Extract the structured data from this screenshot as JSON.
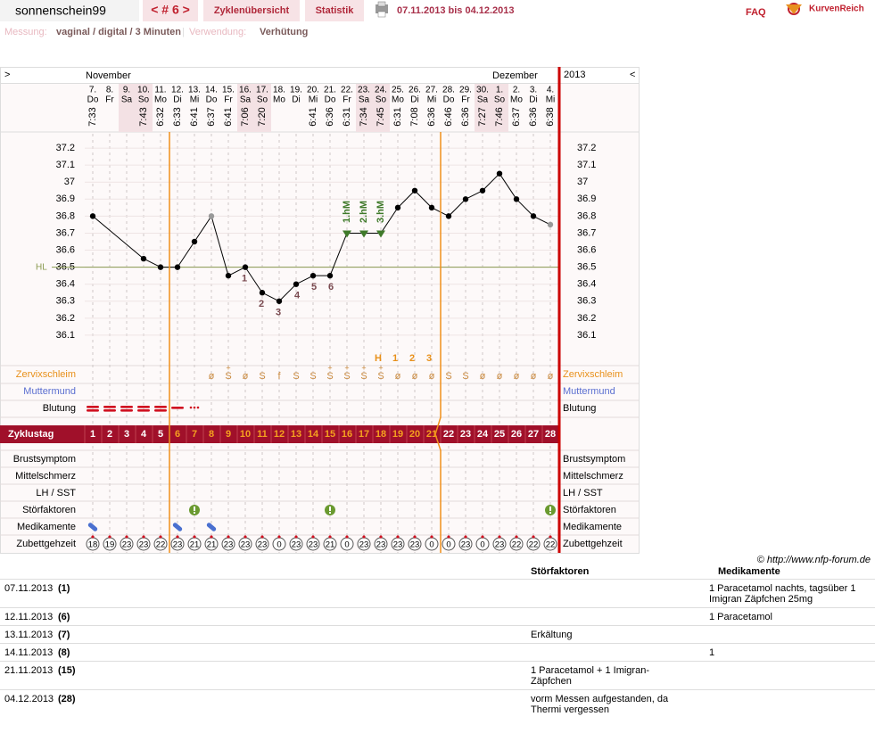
{
  "header": {
    "user": "sonnenschein99",
    "cycle_nav": "< # 6 >",
    "tabs": [
      "Zyklenübersicht",
      "Statistik"
    ],
    "date_range": "07.11.2013 bis 04.12.2013",
    "faq": "FAQ",
    "logo": "KurvenReich"
  },
  "settings_line": {
    "measurement_label": "Messung:",
    "measurement": "vaginal / digital / 3 Minuten",
    "separator": "|",
    "usage_label": "Verwendung:",
    "usage": "Verhütung"
  },
  "chart_data": {
    "type": "line",
    "nav_prev": ">",
    "nav_next": "<",
    "year": "2013",
    "months": [
      "November",
      "Dezember"
    ],
    "month_starts": [
      0,
      24
    ],
    "days": [
      "7.",
      "8.",
      "9.",
      "10.",
      "11.",
      "12.",
      "13.",
      "14.",
      "15.",
      "16.",
      "17.",
      "18.",
      "19.",
      "20.",
      "21.",
      "22.",
      "23.",
      "24.",
      "25.",
      "26.",
      "27.",
      "28.",
      "29.",
      "30.",
      "1.",
      "2.",
      "3.",
      "4."
    ],
    "weekdays": [
      "Do",
      "Fr",
      "Sa",
      "So",
      "Mo",
      "Di",
      "Mi",
      "Do",
      "Fr",
      "Sa",
      "So",
      "Mo",
      "Di",
      "Mi",
      "Do",
      "Fr",
      "Sa",
      "So",
      "Mo",
      "Di",
      "Mi",
      "Do",
      "Fr",
      "Sa",
      "So",
      "Mo",
      "Di",
      "Mi"
    ],
    "weekend": [
      false,
      false,
      true,
      true,
      false,
      false,
      false,
      false,
      false,
      true,
      true,
      false,
      false,
      false,
      false,
      false,
      true,
      true,
      false,
      false,
      false,
      false,
      false,
      true,
      true,
      false,
      false,
      false
    ],
    "times": [
      "7:33",
      null,
      null,
      "7:43",
      "6:32",
      "6:33",
      "6:41",
      "6:37",
      "6:41",
      "7:06",
      "7:20",
      null,
      null,
      "6:41",
      "6:36",
      "6:31",
      "7:34",
      "7:45",
      "6:31",
      "7:08",
      "6:36",
      "6:46",
      "6:36",
      "7:27",
      "7:46",
      "6:37",
      "6:36",
      "6:38"
    ],
    "values": [
      36.8,
      null,
      null,
      36.55,
      36.5,
      36.5,
      36.65,
      36.8,
      36.45,
      36.5,
      36.35,
      36.3,
      36.4,
      36.45,
      36.45,
      36.7,
      36.7,
      36.7,
      36.85,
      36.95,
      36.85,
      36.8,
      36.9,
      36.95,
      37.05,
      36.9,
      36.8,
      36.75
    ],
    "markers": [
      "dot",
      null,
      null,
      "dot",
      "dot",
      "dot",
      "dot",
      "excluded",
      "dot",
      "dot",
      "dot",
      "dot",
      "dot",
      "dot",
      "dot",
      "triangle",
      "triangle",
      "triangle",
      "dot",
      "dot",
      "dot",
      "dot",
      "dot",
      "dot",
      "dot",
      "dot",
      "dot",
      "excluded"
    ],
    "low_labels": [
      null,
      null,
      null,
      null,
      null,
      null,
      null,
      null,
      null,
      "1",
      "2",
      "3",
      "4",
      "5",
      "6",
      null,
      null,
      null,
      null,
      null,
      null,
      null,
      null,
      null,
      null,
      null,
      null,
      null
    ],
    "high_labels": [
      null,
      null,
      null,
      null,
      null,
      null,
      null,
      null,
      null,
      null,
      null,
      null,
      null,
      null,
      null,
      "1.hM",
      "2.hM",
      "3.hM",
      null,
      null,
      null,
      null,
      null,
      null,
      null,
      null,
      null,
      null
    ],
    "ylim": [
      36.0,
      37.3
    ],
    "yticks": [
      36.1,
      36.2,
      36.3,
      36.4,
      36.5,
      36.6,
      36.7,
      36.8,
      36.9,
      37,
      37.1,
      37.2
    ],
    "grid": true,
    "hl": {
      "value": 36.5,
      "label": "HL"
    },
    "line_color": "#000000",
    "excluded_color": "#999999",
    "triangle_color": "#3f7a2a",
    "hl_color": "#8a9a50",
    "mucus_peak": [
      null,
      null,
      null,
      null,
      null,
      null,
      null,
      null,
      null,
      null,
      null,
      null,
      null,
      null,
      null,
      null,
      null,
      "H",
      "1",
      "2",
      "3",
      null,
      null,
      null,
      null,
      null,
      null,
      null
    ],
    "mucus": [
      null,
      null,
      null,
      null,
      null,
      null,
      null,
      "ø",
      "S",
      "ø",
      "S",
      "f",
      "S",
      "S",
      "S",
      "S",
      "S",
      "S",
      "ø",
      "ø",
      "ø",
      "S",
      "S",
      "ø",
      "ø",
      "ø",
      "ø",
      "ø"
    ],
    "mucus_plus": [
      null,
      null,
      null,
      null,
      null,
      null,
      null,
      null,
      "+",
      null,
      null,
      null,
      null,
      null,
      "+",
      "+",
      "+",
      "+",
      null,
      null,
      null,
      null,
      null,
      null,
      null,
      null,
      null,
      null
    ],
    "bleeding": [
      3,
      3,
      3,
      3,
      3,
      2,
      1,
      null,
      null,
      null,
      null,
      null,
      null,
      null,
      null,
      null,
      null,
      null,
      null,
      null,
      null,
      null,
      null,
      null,
      null,
      null,
      null,
      null
    ],
    "cycle_days": [
      1,
      2,
      3,
      4,
      5,
      6,
      7,
      8,
      9,
      10,
      11,
      12,
      13,
      14,
      15,
      16,
      17,
      18,
      19,
      20,
      21,
      22,
      23,
      24,
      25,
      26,
      27,
      28
    ],
    "fertile_window": [
      6,
      21
    ],
    "bedtime": [
      18,
      19,
      23,
      23,
      22,
      23,
      21,
      21,
      23,
      23,
      23,
      0,
      23,
      23,
      21,
      0,
      23,
      23,
      23,
      23,
      0,
      0,
      23,
      0,
      23,
      22,
      22,
      22
    ],
    "row_labels": {
      "mucus": "Zervixschleim",
      "cervix": "Muttermund",
      "bleeding": "Blutung",
      "cycle_day": "Zyklustag",
      "breast": "Brustsymptom",
      "mittelschmerz": "Mittelschmerz",
      "lh": "LH / SST",
      "disturbances": "Störfaktoren",
      "medication": "Medikamente",
      "bedtime": "Zubettgehzeit"
    }
  },
  "footer": {
    "copyright": "© http://www.nfp-forum.de"
  },
  "notes": {
    "headers": [
      "Störfaktoren",
      "Medikamente"
    ],
    "rows": [
      {
        "date": "07.11.2013",
        "cycle_day": {
          "value": 1,
          "label": "(1)"
        },
        "disturbance": null,
        "medication": "1 Paracetamol nachts, tagsüber 1 Imigran Zäpfchen 25mg"
      },
      {
        "date": "12.11.2013",
        "cycle_day": {
          "value": 6,
          "label": "(6)"
        },
        "disturbance": null,
        "medication": "1 Paracetamol"
      },
      {
        "date": "13.11.2013",
        "cycle_day": {
          "value": 7,
          "label": "(7)"
        },
        "disturbance": "Erkältung",
        "medication": null
      },
      {
        "date": "14.11.2013",
        "cycle_day": {
          "value": 8,
          "label": "(8)"
        },
        "disturbance": null,
        "medication": "1"
      },
      {
        "date": "21.11.2013",
        "cycle_day": {
          "value": 15,
          "label": "(15)"
        },
        "disturbance": "1 Paracetamol + 1 Imigran-Zäpfchen",
        "medication": null
      },
      {
        "date": "04.12.2013",
        "cycle_day": {
          "value": 28,
          "label": "(28)"
        },
        "disturbance": "vorm Messen aufgestanden, da Thermi vergessen",
        "medication": null
      }
    ]
  }
}
